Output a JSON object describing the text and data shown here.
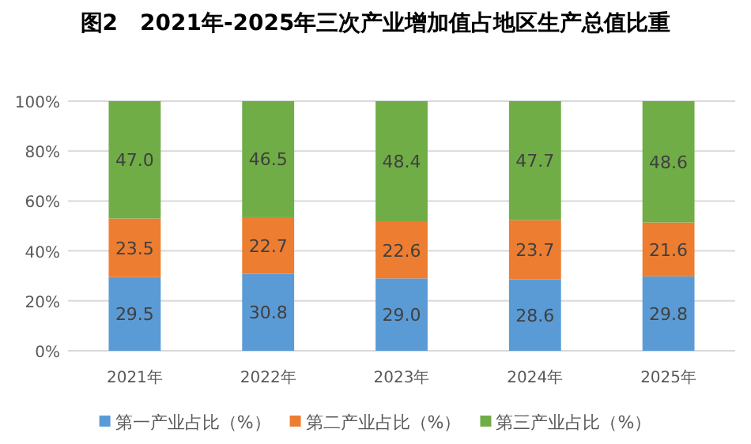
{
  "chart_data": {
    "type": "bar",
    "stacked": true,
    "title": "图2　2021年-2025年三次产业增加值占地区生产总值比重",
    "categories": [
      "2021年",
      "2022年",
      "2023年",
      "2024年",
      "2025年"
    ],
    "series": [
      {
        "name": "第一产业占比（%）",
        "color": "#5b9bd5",
        "values": [
          29.5,
          30.8,
          29.0,
          28.6,
          29.8
        ],
        "value_labels": [
          "29.5",
          "30.8",
          "29.0",
          "28.6",
          "29.8"
        ]
      },
      {
        "name": "第二产业占比（%）",
        "color": "#ed7d31",
        "values": [
          23.5,
          22.7,
          22.6,
          23.7,
          21.6
        ],
        "value_labels": [
          "23.5",
          "22.7",
          "22.6",
          "23.7",
          "21.6"
        ]
      },
      {
        "name": "第三产业占比（%）",
        "color": "#70ad47",
        "values": [
          47.0,
          46.5,
          48.4,
          47.7,
          48.6
        ],
        "value_labels": [
          "47.0",
          "46.5",
          "48.4",
          "47.7",
          "48.6"
        ]
      }
    ],
    "ylim": [
      0,
      100
    ],
    "yticks": [
      {
        "value": 0,
        "label": "0%"
      },
      {
        "value": 20,
        "label": "20%"
      },
      {
        "value": 40,
        "label": "40%"
      },
      {
        "value": 60,
        "label": "60%"
      },
      {
        "value": 80,
        "label": "80%"
      },
      {
        "value": 100,
        "label": "100%"
      }
    ],
    "grid": "y",
    "legend": "bottom"
  }
}
